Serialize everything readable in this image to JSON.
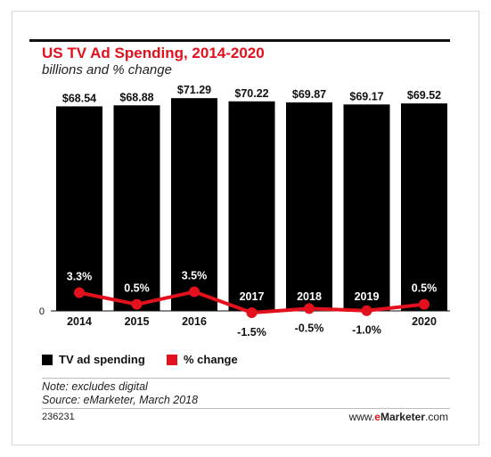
{
  "chart_data": {
    "type": "bar",
    "title": "US TV Ad Spending, 2014-2020",
    "subtitle": "billions and % change",
    "categories": [
      "2014",
      "2015",
      "2016",
      "2017",
      "2018",
      "2019",
      "2020"
    ],
    "series": [
      {
        "name": "TV ad spending",
        "type": "bar",
        "color": "#000000",
        "values": [
          68.54,
          68.88,
          71.29,
          70.22,
          69.87,
          69.17,
          69.52
        ],
        "labels": [
          "$68.54",
          "$68.88",
          "$71.29",
          "$70.22",
          "$69.87",
          "$69.17",
          "$69.52"
        ]
      },
      {
        "name": "% change",
        "type": "line",
        "color": "#e3101e",
        "values": [
          3.3,
          0.5,
          3.5,
          -1.5,
          -0.5,
          -1.0,
          0.5
        ],
        "labels": [
          "3.3%",
          "0.5%",
          "3.5%",
          "-1.5%",
          "-0.5%",
          "-1.0%",
          "0.5%"
        ]
      }
    ],
    "zero_label": "0",
    "grid": false,
    "legend_position": "bottom-left"
  },
  "note": "Note: excludes digital",
  "source": "Source: eMarketer, March 2018",
  "footer": {
    "id": "236231",
    "brand_prefix": "www.",
    "brand_highlight": "e",
    "brand_main": "Marketer",
    "brand_suffix": ".com"
  }
}
